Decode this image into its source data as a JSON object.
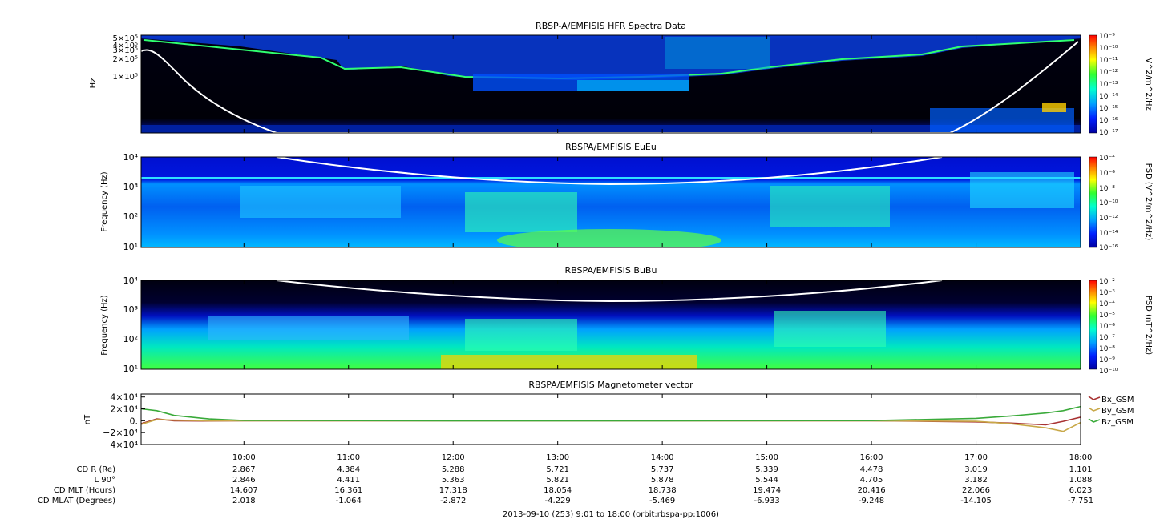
{
  "chart_data": [
    {
      "type": "heatmap",
      "title": "RBSP-A/EMFISIS  HFR Spectra Data",
      "ylabel": "Hz",
      "y_scale": "log",
      "ylim": [
        10000,
        550000
      ],
      "y_ticks": [
        "5×10⁵",
        "4×10⁵",
        "3×10⁵",
        "2×10⁵",
        "1×10⁵"
      ],
      "colorbar": {
        "label": "V^2/m^2/Hz",
        "scale": "log",
        "range": [
          1e-17,
          1e-09
        ],
        "ticks": [
          "10⁻⁹",
          "10⁻¹⁰",
          "10⁻¹¹",
          "10⁻¹²",
          "10⁻¹³",
          "10⁻¹⁴",
          "10⁻¹⁵",
          "10⁻¹⁶",
          "10⁻¹⁷"
        ]
      },
      "overlay_line": {
        "color": "#ffffff",
        "x": [
          "9:01",
          "9:30",
          "10:00",
          "10:30",
          "16:30",
          "17:00",
          "17:30",
          "18:00"
        ],
        "y": [
          300000,
          120000,
          30000,
          10000,
          10000,
          30000,
          120000,
          400000
        ]
      }
    },
    {
      "type": "heatmap",
      "title": "RBSPA/EMFISIS  EuEu",
      "ylabel": "Frequency (Hz)",
      "y_scale": "log",
      "ylim": [
        10,
        12000
      ],
      "y_ticks": [
        "10⁴",
        "10³",
        "10²",
        "10¹"
      ],
      "colorbar": {
        "label": "PSD (V^2/m^2/Hz)",
        "scale": "log",
        "range": [
          1e-16,
          0.0001
        ],
        "ticks": [
          "10⁻⁴",
          "10⁻⁶",
          "10⁻⁸",
          "10⁻¹⁰",
          "10⁻¹²",
          "10⁻¹⁴",
          "10⁻¹⁶"
        ]
      },
      "overlay_line": {
        "color": "#ffffff",
        "x": [
          "10:00",
          "11:00",
          "12:00",
          "13:00",
          "14:00",
          "15:00",
          "16:00",
          "16:45"
        ],
        "y": [
          12000,
          5000,
          3000,
          2500,
          2500,
          3000,
          5000,
          12000
        ]
      }
    },
    {
      "type": "heatmap",
      "title": "RBSPA/EMFISIS  BuBu",
      "ylabel": "Frequency (Hz)",
      "y_scale": "log",
      "ylim": [
        10,
        12000
      ],
      "y_ticks": [
        "10⁴",
        "10³",
        "10²",
        "10¹"
      ],
      "colorbar": {
        "label": "PSD (nT^2/Hz)",
        "scale": "log",
        "range": [
          1e-10,
          0.01
        ],
        "ticks": [
          "10⁻²",
          "10⁻³",
          "10⁻⁴",
          "10⁻⁵",
          "10⁻⁶",
          "10⁻⁷",
          "10⁻⁸",
          "10⁻⁹",
          "10⁻¹⁰"
        ]
      },
      "overlay_line": {
        "color": "#ffffff",
        "x": [
          "10:00",
          "11:00",
          "12:00",
          "13:00",
          "14:00",
          "15:00",
          "16:00",
          "16:45"
        ],
        "y": [
          12000,
          5000,
          3000,
          2500,
          2500,
          3000,
          5000,
          12000
        ]
      }
    },
    {
      "type": "line",
      "title": "RBSPA/EMFISIS  Magnetometer vector",
      "ylabel": "nT",
      "ylim": [
        -40000,
        45000
      ],
      "y_ticks": [
        {
          "value": 40000,
          "label": "4×10⁴"
        },
        {
          "value": 20000,
          "label": "2×10⁴"
        },
        {
          "value": 0,
          "label": "0."
        },
        {
          "value": -20000,
          "label": "−2×10⁴"
        },
        {
          "value": -40000,
          "label": "−4×10⁴"
        }
      ],
      "legend_position": "right",
      "x": [
        "9:01",
        "9:10",
        "9:20",
        "9:40",
        "10:00",
        "12:00",
        "14:00",
        "16:00",
        "17:00",
        "17:20",
        "17:40",
        "17:50",
        "18:00"
      ],
      "series": [
        {
          "name": "Bx_GSM",
          "color": "#a83232",
          "values": [
            -5000,
            3000,
            0,
            -500,
            0,
            0,
            0,
            0,
            -2000,
            -4000,
            -7000,
            -1000,
            6000
          ]
        },
        {
          "name": "By_GSM",
          "color": "#c8a848",
          "values": [
            -6000,
            2000,
            1000,
            0,
            0,
            0,
            0,
            0,
            -1000,
            -5000,
            -12000,
            -18000,
            -3000
          ]
        },
        {
          "name": "Bz_GSM",
          "color": "#3aaa3a",
          "values": [
            20000,
            17000,
            9000,
            3000,
            500,
            0,
            0,
            200,
            4000,
            8000,
            13000,
            17000,
            24000
          ]
        }
      ]
    }
  ],
  "time_ticks": [
    "10:00",
    "11:00",
    "12:00",
    "13:00",
    "14:00",
    "15:00",
    "16:00",
    "17:00",
    "18:00"
  ],
  "ephemeris": {
    "rows": [
      {
        "label": "CD R (Re)",
        "values": [
          "2.867",
          "4.384",
          "5.288",
          "5.721",
          "5.737",
          "5.339",
          "4.478",
          "3.019",
          "1.101"
        ]
      },
      {
        "label": "L 90°",
        "values": [
          "2.846",
          "4.411",
          "5.363",
          "5.821",
          "5.878",
          "5.544",
          "4.705",
          "3.182",
          "1.088"
        ]
      },
      {
        "label": "CD MLT (Hours)",
        "values": [
          "14.607",
          "16.361",
          "17.318",
          "18.054",
          "18.738",
          "19.474",
          "20.416",
          "22.066",
          "6.023"
        ]
      },
      {
        "label": "CD MLAT (Degrees)",
        "values": [
          "2.018",
          "-1.064",
          "-2.872",
          "-4.229",
          "-5.469",
          "-6.933",
          "-9.248",
          "-14.105",
          "-7.751"
        ]
      }
    ]
  },
  "footer": "2013-09-10 (253) 9:01 to 18:00 (orbit:rbspa-pp:1006)"
}
